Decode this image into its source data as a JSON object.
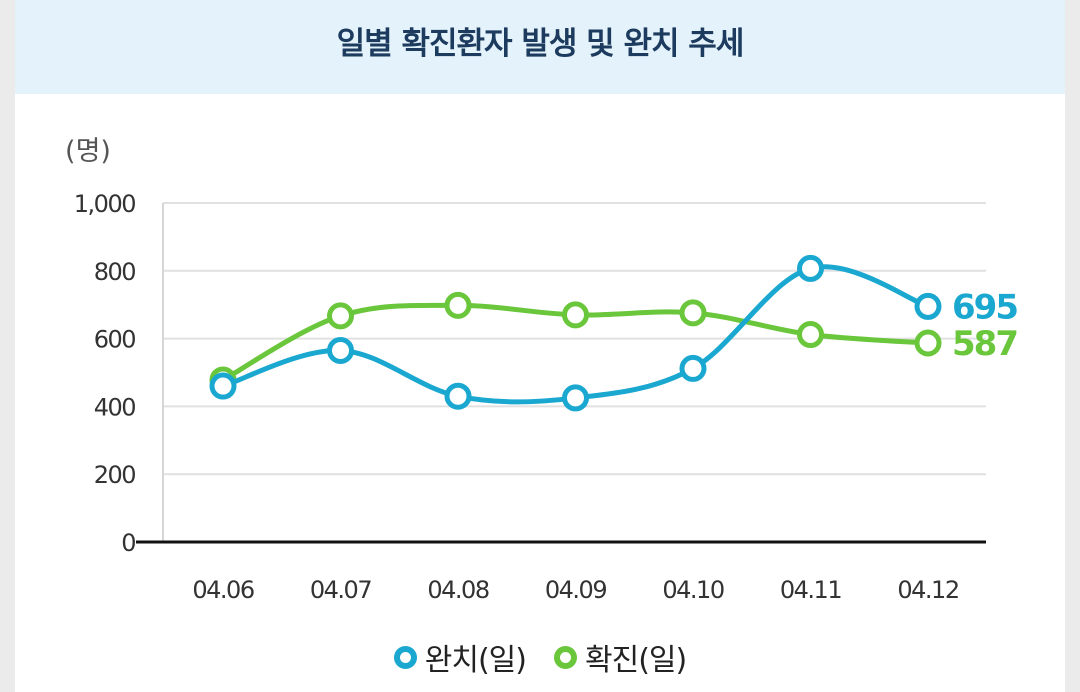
{
  "colors": {
    "recovered": "#1aa7d0",
    "confirmed": "#6ac63a",
    "title": "#1c3b5e",
    "header_bg": "#e4f3fb"
  },
  "chart_data": {
    "type": "line",
    "title": "일별 확진환자 발생 및 완치 추세",
    "ylabel": "(명)",
    "xlabel": "",
    "ylim": [
      0,
      1000
    ],
    "yticks": [
      0,
      200,
      400,
      600,
      800,
      1000
    ],
    "ytick_labels": [
      "0",
      "200",
      "400",
      "600",
      "800",
      "1,000"
    ],
    "categories": [
      "04.06",
      "04.07",
      "04.08",
      "04.09",
      "04.10",
      "04.11",
      "04.12"
    ],
    "series": [
      {
        "name": "완치(일)",
        "key": "recovered",
        "values": [
          460,
          565,
          430,
          425,
          512,
          807,
          695
        ],
        "end_label": "695"
      },
      {
        "name": "확진(일)",
        "key": "confirmed",
        "values": [
          478,
          667,
          698,
          670,
          676,
          612,
          587
        ],
        "end_label": "587"
      }
    ],
    "legend": "bottom-center",
    "grid": true
  }
}
